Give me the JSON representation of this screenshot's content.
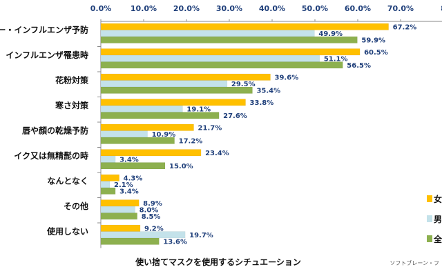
{
  "chart_data": {
    "type": "bar",
    "orientation": "horizontal",
    "categories": [
      "ー・インフルエンザ予防",
      "インフルエンザ罹患時",
      "花粉対策",
      "寒さ対策",
      "唇や顔の乾燥予防",
      "イク又は無精髭の時",
      "なんとなく",
      "その他",
      "使用しない"
    ],
    "series": [
      {
        "name": "女",
        "color": "#ffc000",
        "values": [
          67.2,
          60.5,
          39.6,
          33.8,
          21.7,
          23.4,
          4.3,
          8.9,
          9.2
        ]
      },
      {
        "name": "男",
        "color": "#c4e2ea",
        "values": [
          49.9,
          51.1,
          29.5,
          19.1,
          10.9,
          3.4,
          2.1,
          8.0,
          19.7
        ]
      },
      {
        "name": "全",
        "color": "#8db04f",
        "values": [
          59.9,
          56.5,
          35.4,
          27.6,
          17.2,
          15.0,
          3.4,
          8.5,
          13.6
        ]
      }
    ],
    "x_ticks": [
      "0.0%",
      "10.0%",
      "20.0%",
      "30.0%",
      "40.0%",
      "50.0%",
      "60.0%",
      "70.0%",
      "8"
    ],
    "xlim": [
      0,
      80
    ],
    "xlabel": "使い捨てマスクを使用するシチュエーション",
    "legend_position": "right",
    "grid": false
  },
  "credit": "ソフトブレーン・フ"
}
